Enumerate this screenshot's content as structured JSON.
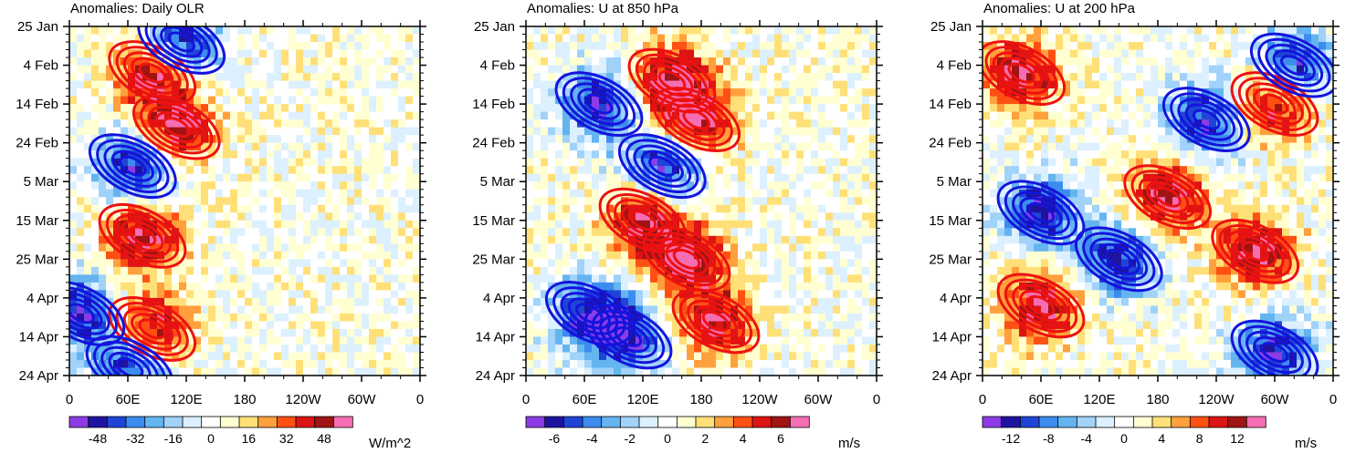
{
  "chart_data": [
    {
      "type": "heatmap",
      "title": "Anomalies: Daily OLR",
      "units": "W/m^2",
      "xlabel": "",
      "ylabel": "",
      "x_tick_labels": [
        "0",
        "60E",
        "120E",
        "180",
        "120W",
        "60W",
        "0"
      ],
      "y_tick_labels": [
        "25 Jan",
        "4 Feb",
        "14 Feb",
        "24 Feb",
        "5 Mar",
        "15 Mar",
        "25 Mar",
        "4 Apr",
        "14 Apr",
        "24 Apr"
      ],
      "colorbar_levels": [
        -56,
        -48,
        -40,
        -32,
        -24,
        -16,
        -8,
        0,
        8,
        16,
        24,
        32,
        40,
        48,
        56
      ],
      "colorbar_labels": [
        "-48",
        "-32",
        "-16",
        "0",
        "16",
        "32",
        "48"
      ],
      "colorbar_label_levels": [
        -48,
        -32,
        -16,
        0,
        16,
        32,
        48
      ],
      "contours": [
        {
          "sign": "positive",
          "color": "red",
          "centers": [
            [
              85,
              6
            ],
            [
              75,
              27
            ],
            [
              85,
              39
            ],
            [
              110,
              13
            ]
          ]
        },
        {
          "sign": "negative",
          "color": "blue",
          "centers": [
            [
              65,
              18
            ],
            [
              12,
              37
            ],
            [
              62,
              44
            ],
            [
              115,
              2
            ]
          ]
        }
      ]
    },
    {
      "type": "heatmap",
      "title": "Anomalies: U at 850 hPa",
      "units": "m/s",
      "xlabel": "",
      "ylabel": "",
      "x_tick_labels": [
        "0",
        "60E",
        "120E",
        "180",
        "120W",
        "60W",
        "0"
      ],
      "y_tick_labels": [
        "25 Jan",
        "4 Feb",
        "14 Feb",
        "24 Feb",
        "5 Mar",
        "15 Mar",
        "25 Mar",
        "4 Apr",
        "14 Apr",
        "24 Apr"
      ],
      "colorbar_levels": [
        -7,
        -6,
        -5,
        -4,
        -3,
        -2,
        -1,
        0,
        1,
        2,
        3,
        4,
        5,
        6,
        7
      ],
      "colorbar_labels": [
        "-6",
        "-4",
        "-2",
        "0",
        "2",
        "4",
        "6"
      ],
      "colorbar_label_levels": [
        -6,
        -4,
        -2,
        0,
        2,
        4,
        6
      ],
      "contours": [
        {
          "sign": "positive",
          "color": "red",
          "centers": [
            [
              150,
              7
            ],
            [
              175,
              12
            ],
            [
              120,
              25
            ],
            [
              165,
              30
            ],
            [
              195,
              38
            ]
          ]
        },
        {
          "sign": "negative",
          "color": "blue",
          "centers": [
            [
              75,
              10
            ],
            [
              140,
              18
            ],
            [
              65,
              37
            ],
            [
              105,
              40
            ]
          ]
        }
      ]
    },
    {
      "type": "heatmap",
      "title": "Anomalies: U at 200 hPa",
      "units": "m/s",
      "xlabel": "",
      "ylabel": "",
      "x_tick_labels": [
        "0",
        "60E",
        "120E",
        "180",
        "120W",
        "60W",
        "0"
      ],
      "y_tick_labels": [
        "25 Jan",
        "4 Feb",
        "14 Feb",
        "24 Feb",
        "5 Mar",
        "15 Mar",
        "25 Mar",
        "4 Apr",
        "14 Apr",
        "24 Apr"
      ],
      "colorbar_levels": [
        -14,
        -12,
        -10,
        -8,
        -6,
        -4,
        -2,
        0,
        2,
        4,
        6,
        8,
        10,
        12,
        14
      ],
      "colorbar_labels": [
        "-12",
        "-8",
        "-4",
        "0",
        "4",
        "8",
        "12"
      ],
      "colorbar_label_levels": [
        -12,
        -8,
        -4,
        0,
        4,
        8,
        12
      ],
      "contours": [
        {
          "sign": "positive",
          "color": "red",
          "centers": [
            [
              40,
              6
            ],
            [
              190,
              22
            ],
            [
              280,
              29
            ],
            [
              60,
              36
            ],
            [
              300,
              10
            ]
          ]
        },
        {
          "sign": "negative",
          "color": "blue",
          "centers": [
            [
              230,
              12
            ],
            [
              60,
              24
            ],
            [
              140,
              30
            ],
            [
              300,
              42
            ],
            [
              320,
              5
            ]
          ]
        }
      ]
    }
  ],
  "colorbar_colors": [
    "#8c3ce6",
    "#1e14a0",
    "#1f45d6",
    "#3c8cf0",
    "#64b4f0",
    "#a0d2fa",
    "#dcf0ff",
    "#ffffff",
    "#ffffd2",
    "#ffe078",
    "#ffa03c",
    "#ff5014",
    "#dc1414",
    "#a01414",
    "#f56eb4"
  ]
}
